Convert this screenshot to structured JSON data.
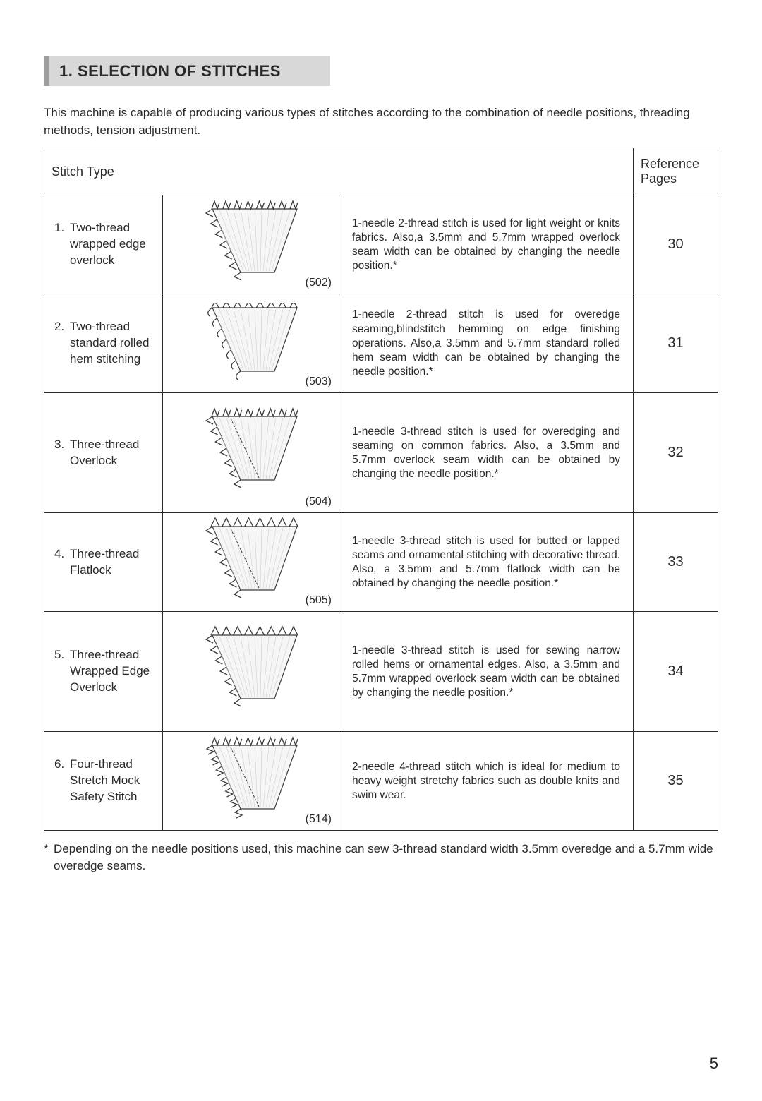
{
  "section": {
    "number": "1.",
    "title": "SELECTION OF STITCHES"
  },
  "intro": "This machine is capable of producing various types of stitches according to the combination of needle positions, threading methods, tension adjustment.",
  "table": {
    "headers": {
      "type": "Stitch Type",
      "ref": "Reference Pages"
    },
    "rows": [
      {
        "num": "1.",
        "name": "Two-thread wrapped edge overlock",
        "code": "(502)",
        "desc": "1-needle 2-thread stitch is used for light weight or knits fabrics. Also,a 3.5mm and 5.7mm wrapped overlock seam width can be obtained by changing the needle position.*",
        "ref": "30",
        "diagram": "wrapped-edge"
      },
      {
        "num": "2.",
        "name": "Two-thread standard rolled hem stitching",
        "code": "(503)",
        "desc": "1-needle 2-thread stitch is used for overedge seaming,blindstitch hemming on edge finishing operations. Also,a 3.5mm and 5.7mm standard rolled hem seam width can be obtained by changing the needle position.*",
        "ref": "31",
        "diagram": "rolled-hem"
      },
      {
        "num": "3.",
        "name": "Three-thread Overlock",
        "code": "(504)",
        "desc": "1-needle 3-thread stitch is used for overedging and seaming on common fabrics.  Also, a 3.5mm and 5.7mm overlock seam width can be obtained by changing the needle position.*",
        "ref": "32",
        "diagram": "three-overlock"
      },
      {
        "num": "4.",
        "name": "Three-thread Flatlock",
        "code": "(505)",
        "desc": "1-needle 3-thread stitch is used for butted or lapped seams and ornamental stitching with decorative thread.  Also, a 3.5mm and 5.7mm flatlock width can be obtained by changing the needle position.*",
        "ref": "33",
        "diagram": "flatlock"
      },
      {
        "num": "5.",
        "name": "Three-thread Wrapped Edge Overlock",
        "code": "",
        "desc": "1-needle 3-thread stitch is used for sewing narrow rolled hems or ornamental edges. Also, a 3.5mm and 5.7mm wrapped overlock seam width can be obtained by changing the needle position.*",
        "ref": "34",
        "diagram": "wrapped-three"
      },
      {
        "num": "6.",
        "name": "Four-thread Stretch Mock Safety Stitch",
        "code": "(514)",
        "desc": "2-needle 4-thread stitch which is ideal for medium to heavy weight stretchy fabrics such as double knits and swim wear.",
        "ref": "35",
        "diagram": "four-thread"
      }
    ]
  },
  "footnote": "Depending on the needle positions used, this machine can sew 3-thread standard width 3.5mm overedge and a 5.7mm wide overedge seams.",
  "footnote_marker": "*",
  "page_number": "5",
  "diagram_style": {
    "stroke": "#3a3a3a",
    "stroke_width": 1.2,
    "top_loop_count": 8,
    "side_loop_count": 7
  }
}
